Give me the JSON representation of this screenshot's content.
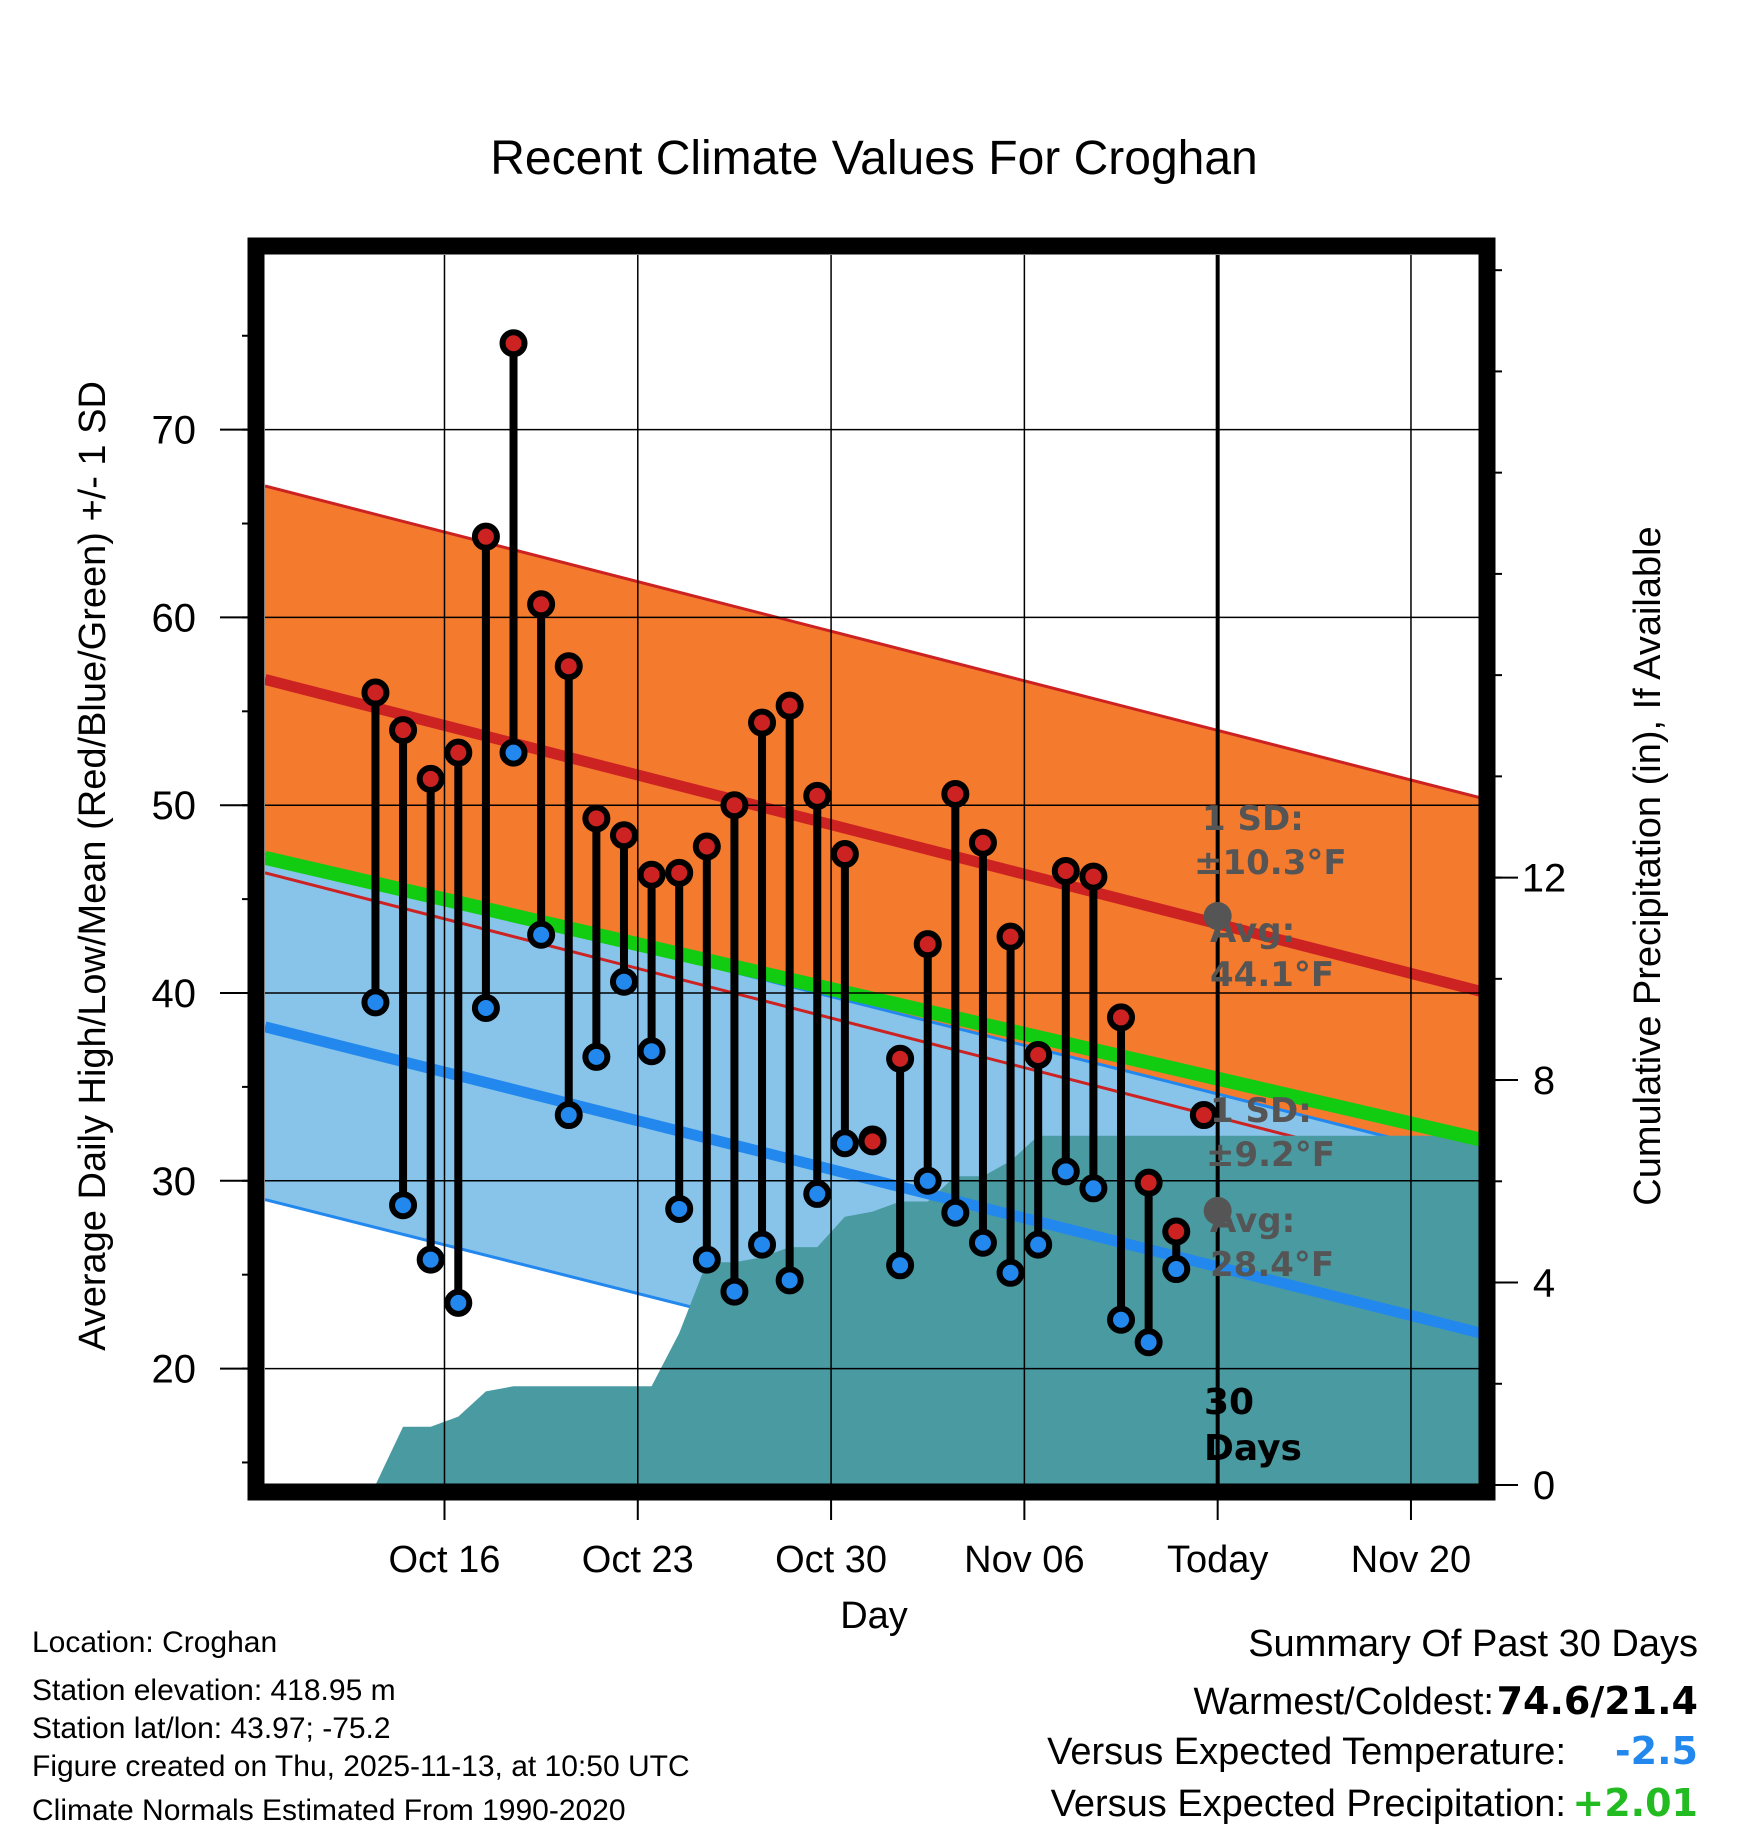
{
  "chart_data": {
    "type": "climate-daily-range",
    "title": "Recent Climate Values For Croghan",
    "xlabel": "Day",
    "ylabel_left": "Average Daily High/Low/Mean (Red/Blue/Green) +/- 1 SD",
    "ylabel_right": "Cumulative Precipitation (in), If Available",
    "y_left_ticks": [
      "20",
      "30",
      "40",
      "50",
      "60",
      "70"
    ],
    "y_right_ticks": [
      "0",
      "4",
      "8",
      "12"
    ],
    "ylim_left": [
      13.8,
      79.3
    ],
    "ylim_right": [
      0,
      24.3
    ],
    "x_range_days": [
      -34.5,
      9.5
    ],
    "x_ticks": [
      {
        "day": -28,
        "label": "Oct 16"
      },
      {
        "day": -21,
        "label": "Oct 23"
      },
      {
        "day": -14,
        "label": "Oct 30"
      },
      {
        "day": -7,
        "label": "Nov 06"
      },
      {
        "day": 0,
        "label": "Today"
      },
      {
        "day": 7,
        "label": "Nov 20"
      }
    ],
    "normals": {
      "high_avg_start": 56.7,
      "high_avg_end": 40.1,
      "high_sd": 10.3,
      "mean_avg_start": 47.2,
      "mean_avg_end": 32.2,
      "low_avg_start": 38.2,
      "low_avg_end": 21.9,
      "low_sd": 9.2,
      "today_high_avg": 44.1,
      "today_low_avg": 28.4
    },
    "series": [
      {
        "name": "Daily High",
        "color": "#cc2222",
        "values": [
          56.0,
          54.0,
          51.4,
          52.8,
          64.3,
          74.6,
          60.7,
          57.4,
          49.3,
          48.4,
          46.3,
          46.4,
          47.8,
          50.0,
          54.4,
          55.3,
          50.5,
          47.4,
          32.1,
          36.5,
          42.6,
          50.6,
          48.0,
          43.0,
          36.7,
          46.5,
          46.2,
          38.7,
          29.9,
          27.3,
          33.5
        ]
      },
      {
        "name": "Daily Low",
        "color": "#2288ee",
        "values": [
          39.5,
          28.7,
          25.8,
          23.5,
          39.2,
          52.8,
          43.1,
          33.5,
          36.6,
          40.6,
          36.9,
          28.5,
          25.8,
          24.1,
          26.6,
          24.7,
          29.3,
          32.0,
          32.2,
          25.5,
          30.0,
          28.3,
          26.7,
          25.1,
          26.6,
          30.5,
          29.6,
          22.6,
          21.4,
          25.3
        ]
      },
      {
        "name": "Cumulative Precipitation",
        "day_start": -30.5,
        "values": [
          0,
          1.15,
          1.15,
          1.35,
          1.85,
          1.95,
          1.95,
          1.95,
          1.95,
          1.95,
          1.95,
          3.0,
          4.4,
          4.4,
          4.5,
          4.7,
          4.7,
          5.3,
          5.4,
          5.6,
          5.6,
          6.1,
          6.1,
          6.4,
          6.9,
          6.9
        ]
      }
    ],
    "annotations": {
      "high_sd_label": "1 SD:",
      "high_sd_value": "±10.3°F",
      "high_avg_label": "Avg:",
      "high_avg_value": "44.1°F",
      "low_sd_label": "1 SD:",
      "low_sd_value": "±9.2°F",
      "low_avg_label": "Avg:",
      "low_avg_value": "28.4°F",
      "window_number": "30",
      "window_unit": "Days"
    }
  },
  "footer": {
    "location": "Location: Croghan",
    "elevation": "Station elevation: 418.95 m",
    "latlon": "Station lat/lon: 43.97; -75.2",
    "created": "Figure created on Thu, 2025-11-13, at 10:50 UTC",
    "normals": "Climate Normals Estimated From 1990-2020"
  },
  "summary": {
    "title": "Summary Of Past 30 Days",
    "warm_cold_label": "Warmest/Coldest:",
    "warm_cold_value": "74.6/21.4",
    "temp_label": "Versus Expected Temperature:",
    "temp_value": "-2.5",
    "precip_label": "Versus Expected Precipitation:",
    "precip_value": "+2.01"
  },
  "colors": {
    "high_band": "#f47a2e",
    "high_line": "#cc2222",
    "mean_line": "#11cc11",
    "low_band": "#88c4ea",
    "low_line": "#2288ee",
    "overlap": "#991111",
    "precip": "#4a9aa2",
    "sd_text": "#555555",
    "temp_value": "#2288ee",
    "precip_value": "#22bb22"
  }
}
